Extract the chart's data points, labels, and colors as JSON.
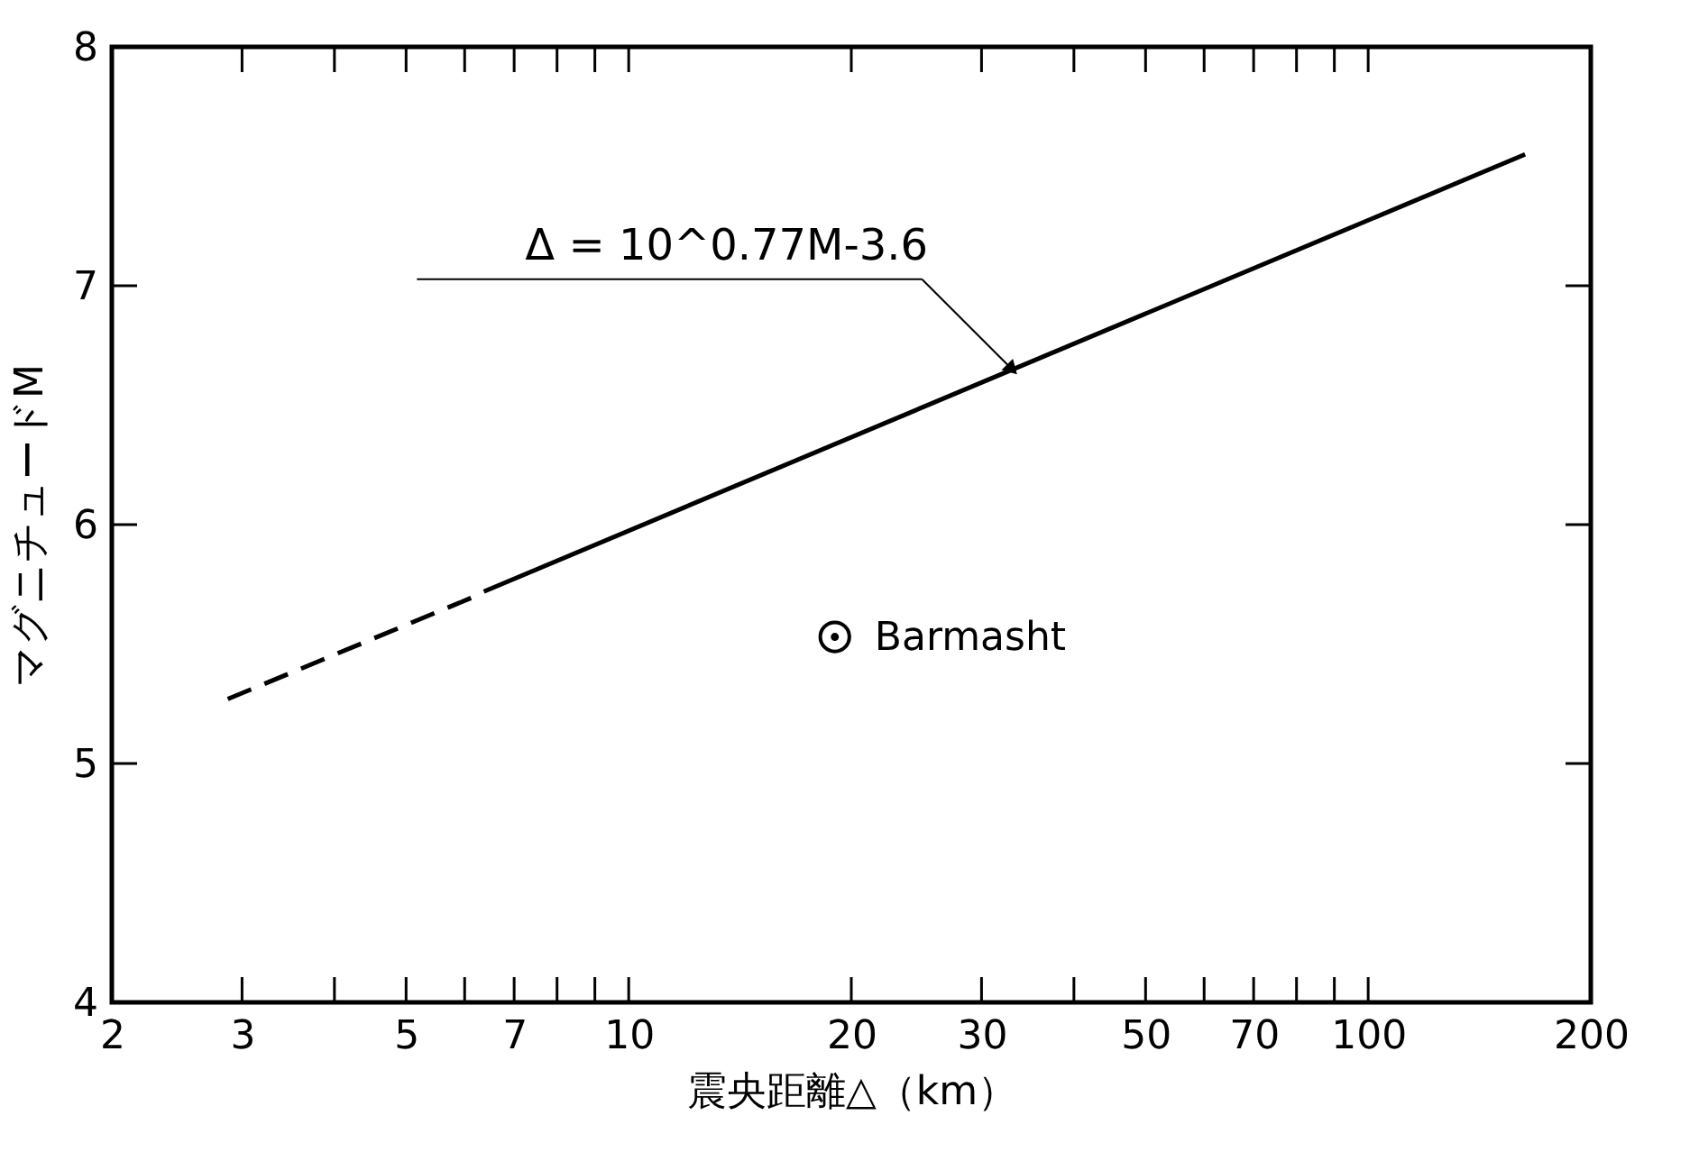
{
  "chart_data": {
    "type": "line",
    "xlabel": "震央距離△（km）",
    "ylabel": "マグニチュードM",
    "log": "x",
    "xlim": [
      2,
      200
    ],
    "ylim": [
      4,
      8
    ],
    "xticks": [
      2,
      3,
      {
        "value": 4,
        "label": null
      },
      5,
      {
        "value": 6,
        "label": null
      },
      7,
      {
        "value": 8,
        "label": null
      },
      {
        "value": 9,
        "label": null
      },
      10,
      20,
      30,
      {
        "value": 40,
        "label": null
      },
      50,
      {
        "value": 60,
        "label": null
      },
      70,
      {
        "value": 80,
        "label": null
      },
      {
        "value": 90,
        "label": null
      },
      100,
      200
    ],
    "yticks": [
      4,
      5,
      6,
      7,
      8
    ],
    "grid": false,
    "series": [
      {
        "color": "#000000",
        "line_style": "dashed",
        "x": [
          2.87,
          6.2
        ],
        "values": [
          5.27,
          5.7
        ]
      },
      {
        "color": "#000000",
        "line_style": "solid",
        "x": [
          6.37,
          163
        ],
        "values": [
          5.72,
          7.55
        ]
      },
      {
        "type": "scatter",
        "name": "Barmasht",
        "color": "#000000",
        "marker": "circle",
        "x": [
          19
        ],
        "values": [
          5.53
        ]
      }
    ],
    "annotations": [
      {
        "text": "Δ = 10^0.77M-3.6",
        "x": 33,
        "y": 6.65
      }
    ]
  }
}
